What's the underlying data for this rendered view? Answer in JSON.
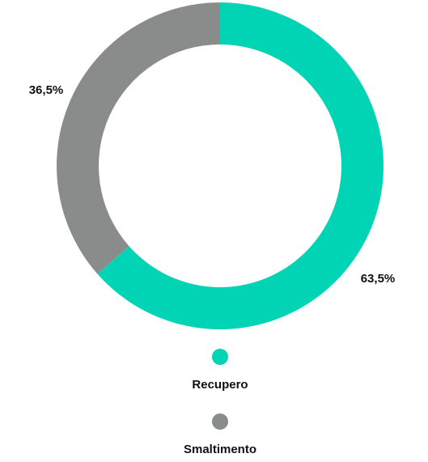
{
  "chart_data": {
    "type": "donut",
    "categories": [
      "Recupero",
      "Smaltimento"
    ],
    "values": [
      63.5,
      36.5
    ],
    "value_labels": [
      "63,5%",
      "36,5%"
    ],
    "colors": [
      "#00d4b4",
      "#8a8c8c"
    ]
  }
}
